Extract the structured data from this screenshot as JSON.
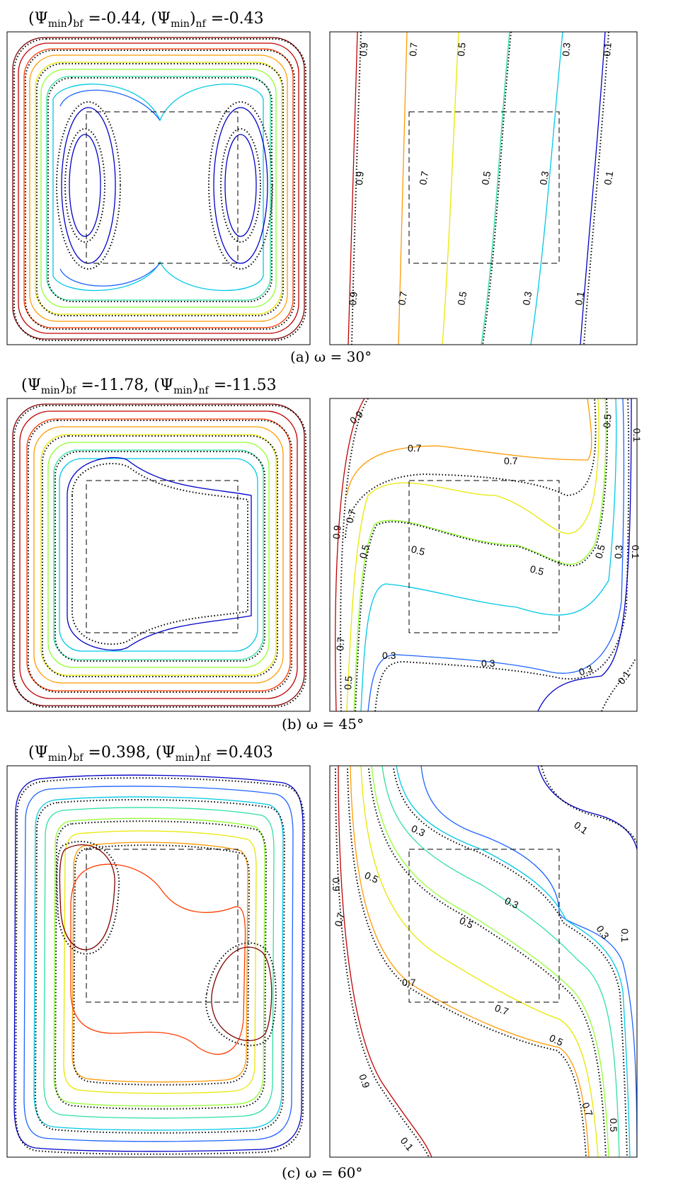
{
  "panels": [
    {
      "id": "a",
      "header": {
        "psi": "(Ψ",
        "min": "min",
        "bf_close": ")",
        "bf": "bf",
        "bf_value": " =-0.44, ",
        "nf_close": ")",
        "nf": "nf",
        "nf_value": " =-0.43"
      },
      "caption": "(a) ω = 30°",
      "contour_labels": [
        "0.9",
        "0.7",
        "0.5",
        "0.3",
        "0.1",
        "0.9",
        "0.7",
        "0.5",
        "0.3",
        "0.1",
        "0.9",
        "0.7",
        "0.5",
        "0.3",
        "0.1"
      ]
    },
    {
      "id": "b",
      "header": {
        "psi": "(Ψ",
        "min": "min",
        "bf_close": ")",
        "bf": "bf",
        "bf_value": " =-11.78, ",
        "nf_close": ")",
        "nf": "nf",
        "nf_value": " =-11.53"
      },
      "caption": "(b) ω = 45°",
      "contour_labels": [
        "0.9",
        "0.7",
        "0.7",
        "0.7",
        "0.5",
        "0.5",
        "0.5",
        "0.5",
        "0.3",
        "0.3",
        "0.3",
        "0.1",
        "0.9",
        "0.7",
        "0.5",
        "0.5",
        "0.3",
        "0.1",
        "0.1"
      ]
    },
    {
      "id": "c",
      "header": {
        "psi": "(Ψ",
        "min": "min",
        "bf_close": ")",
        "bf": "bf",
        "bf_value": " =0.398, ",
        "nf_close": ")",
        "nf": "nf",
        "nf_value": " =0.403"
      },
      "caption": "(c) ω = 60°",
      "contour_labels": [
        "0.1",
        "0.3",
        "0.3",
        "0.3",
        "0.5",
        "0.5",
        "0.5",
        "0.7",
        "0.7",
        "0.7",
        "0.9",
        "0.9",
        "0.7",
        "0.1",
        "0.5"
      ]
    }
  ],
  "colors": {
    "contour_levels": [
      "#0000c8",
      "#1e64ff",
      "#00c8e6",
      "#30e0a0",
      "#90ff30",
      "#e8e800",
      "#ff9a00",
      "#ff3c00",
      "#c00000",
      "#800000"
    ],
    "nanofluid_dots": "#000000",
    "frame": "#000000"
  }
}
